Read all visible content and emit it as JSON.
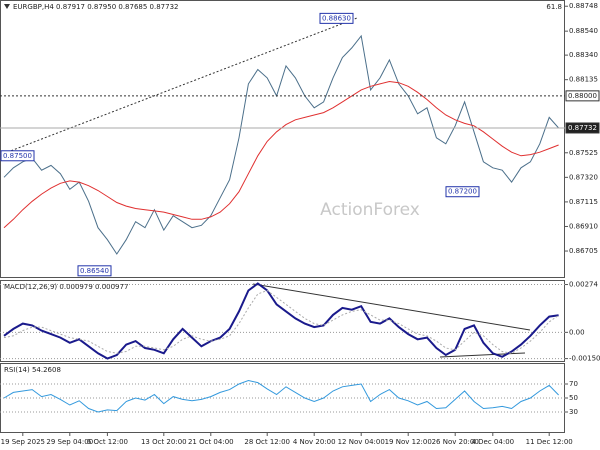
{
  "chart_data": [
    {
      "type": "line",
      "title": "EURGBP,H4  0.87917 0.87950 0.87685 0.87732",
      "corner_note": "61.8",
      "watermark": "ActionForex",
      "categories": [
        null,
        null,
        "19 Sep 2025",
        null,
        null,
        null,
        null,
        "29 Sep 04:00",
        null,
        null,
        null,
        "6 Oct 12:00",
        null,
        null,
        null,
        null,
        null,
        "13 Oct 20:00",
        null,
        null,
        null,
        null,
        "21 Oct 04:00",
        null,
        null,
        null,
        null,
        null,
        "28 Oct 12:00",
        null,
        null,
        null,
        null,
        "4 Nov 20:00",
        null,
        null,
        null,
        null,
        "12 Nov 04:00",
        null,
        null,
        null,
        null,
        "19 Nov 12:00",
        null,
        null,
        null,
        null,
        "26 Nov 20:00",
        null,
        null,
        null,
        "4 Dec 04:00",
        null,
        null,
        null,
        null,
        null,
        "11 Dec 12:00",
        null
      ],
      "series": [
        {
          "name": "EURGBP",
          "color": "#4b6f8a",
          "values": [
            0.8732,
            0.874,
            0.8745,
            0.8748,
            0.8738,
            0.8742,
            0.8735,
            0.8722,
            0.8728,
            0.8712,
            0.869,
            0.868,
            0.8668,
            0.868,
            0.8695,
            0.869,
            0.8705,
            0.8688,
            0.87,
            0.8695,
            0.869,
            0.8692,
            0.87,
            0.8715,
            0.873,
            0.8765,
            0.881,
            0.8822,
            0.8815,
            0.88,
            0.8825,
            0.8815,
            0.88,
            0.879,
            0.8795,
            0.8815,
            0.8832,
            0.884,
            0.885,
            0.8805,
            0.8815,
            0.883,
            0.881,
            0.88,
            0.8785,
            0.879,
            0.8765,
            0.876,
            0.8775,
            0.8795,
            0.877,
            0.8745,
            0.874,
            0.8738,
            0.8728,
            0.874,
            0.8745,
            0.876,
            0.8782,
            0.87732
          ]
        },
        {
          "name": "MA",
          "color": "#e03030",
          "values": [
            0.869,
            0.8697,
            0.8705,
            0.8712,
            0.8718,
            0.8723,
            0.8727,
            0.8729,
            0.8728,
            0.8725,
            0.8721,
            0.8716,
            0.8711,
            0.8708,
            0.8706,
            0.8705,
            0.8704,
            0.8703,
            0.8701,
            0.8699,
            0.8697,
            0.8697,
            0.8699,
            0.8703,
            0.871,
            0.872,
            0.8735,
            0.875,
            0.8762,
            0.877,
            0.8776,
            0.878,
            0.8782,
            0.8784,
            0.8786,
            0.879,
            0.8795,
            0.88,
            0.8805,
            0.8808,
            0.881,
            0.8812,
            0.8811,
            0.8808,
            0.8803,
            0.8797,
            0.879,
            0.8784,
            0.878,
            0.8777,
            0.8775,
            0.877,
            0.8764,
            0.8758,
            0.8753,
            0.875,
            0.8751,
            0.8753,
            0.8756,
            0.8759
          ]
        }
      ],
      "ylim": [
        0.8648,
        0.888
      ],
      "yticks": [
        {
          "value": 0.88748,
          "label": "0.88748"
        },
        {
          "value": 0.8854,
          "label": "0.88540"
        },
        {
          "value": 0.8834,
          "label": "0.88340"
        },
        {
          "value": 0.88135,
          "label": "0.88135"
        },
        {
          "value": 0.87525,
          "label": "0.87525"
        },
        {
          "value": 0.8732,
          "label": "0.87320"
        },
        {
          "value": 0.87115,
          "label": "0.87115"
        },
        {
          "value": 0.8691,
          "label": "0.86910"
        },
        {
          "value": 0.86705,
          "label": "0.86705"
        }
      ],
      "grid": false,
      "hlines": [
        {
          "value": 0.88,
          "label": "0.88000"
        },
        {
          "value": 0.87732,
          "label": "0.87732"
        }
      ],
      "price_labels": [
        {
          "value": 0.8863,
          "label": "0.88630"
        },
        {
          "value": 0.875,
          "label": "0.87500"
        },
        {
          "value": 0.8654,
          "label": "0.86540"
        },
        {
          "value": 0.872,
          "label": "0.87200"
        }
      ]
    },
    {
      "type": "line",
      "title": "MACD(12,26,9) 0.000979 0.000977",
      "series": [
        {
          "name": "MACD",
          "color": "#1a1a8c",
          "values": [
            -0.0002,
            0.0002,
            0.0005,
            0.0004,
            0.0001,
            -0.0001,
            -0.0003,
            -0.0006,
            -0.0004,
            -0.0008,
            -0.0012,
            -0.0015,
            -0.0013,
            -0.0007,
            -0.0005,
            -0.0009,
            -0.001,
            -0.0012,
            -0.0004,
            0.0002,
            -0.0003,
            -0.0008,
            -0.0005,
            -0.0003,
            0.0002,
            0.0012,
            0.0024,
            0.0028,
            0.0024,
            0.0016,
            0.0012,
            0.0008,
            0.0005,
            0.0003,
            0.0004,
            0.001,
            0.0014,
            0.0013,
            0.0015,
            0.0006,
            0.0005,
            0.0008,
            0.0003,
            -0.0001,
            -0.0004,
            -0.0003,
            -0.0009,
            -0.0013,
            -0.001,
            0.0002,
            0.0004,
            -0.0006,
            -0.0012,
            -0.0014,
            -0.0011,
            -0.0007,
            -0.0002,
            0.0004,
            0.0009,
            0.000979
          ]
        },
        {
          "name": "Signal",
          "color": "#aaaaaa",
          "values": [
            -0.0003,
            -0.0002,
            0.0001,
            0.0003,
            0.0003,
            0.0001,
            -0.0001,
            -0.0003,
            -0.0004,
            -0.0005,
            -0.0008,
            -0.0011,
            -0.0012,
            -0.0011,
            -0.0008,
            -0.0008,
            -0.0009,
            -0.001,
            -0.0008,
            -0.0004,
            -0.0002,
            -0.0004,
            -0.0005,
            -0.0004,
            -0.0002,
            0.0005,
            0.0014,
            0.0022,
            0.0024,
            0.002,
            0.0016,
            0.0012,
            0.0008,
            0.0005,
            0.0004,
            0.0007,
            0.001,
            0.0012,
            0.0013,
            0.001,
            0.0007,
            0.0007,
            0.0005,
            0.0002,
            -0.0001,
            -0.0002,
            -0.0005,
            -0.0009,
            -0.001,
            -0.0005,
            0,
            -0.0002,
            -0.0007,
            -0.0011,
            -0.0012,
            -0.0009,
            -0.0005,
            0,
            0.0006,
            0.000977
          ]
        }
      ],
      "ylim": [
        -0.0017,
        0.003
      ],
      "yticks": [
        0.00274,
        {
          "value": 0,
          "label": "0.00"
        },
        -0.001505
      ],
      "grid": true
    },
    {
      "type": "line",
      "title": "RSI(14) 54.2608",
      "series": [
        {
          "name": "RSI",
          "color": "#3399dd",
          "values": [
            50,
            58,
            60,
            62,
            52,
            55,
            48,
            40,
            46,
            35,
            30,
            33,
            32,
            45,
            50,
            47,
            55,
            42,
            52,
            48,
            46,
            48,
            52,
            58,
            62,
            70,
            75,
            72,
            63,
            55,
            66,
            58,
            50,
            45,
            50,
            60,
            66,
            68,
            70,
            45,
            55,
            62,
            50,
            46,
            40,
            45,
            35,
            36,
            48,
            60,
            45,
            35,
            36,
            38,
            35,
            45,
            50,
            60,
            68,
            54.2608
          ]
        }
      ],
      "ylim": [
        0,
        100
      ],
      "yticks": [
        70,
        50,
        30
      ],
      "grid": true
    }
  ]
}
